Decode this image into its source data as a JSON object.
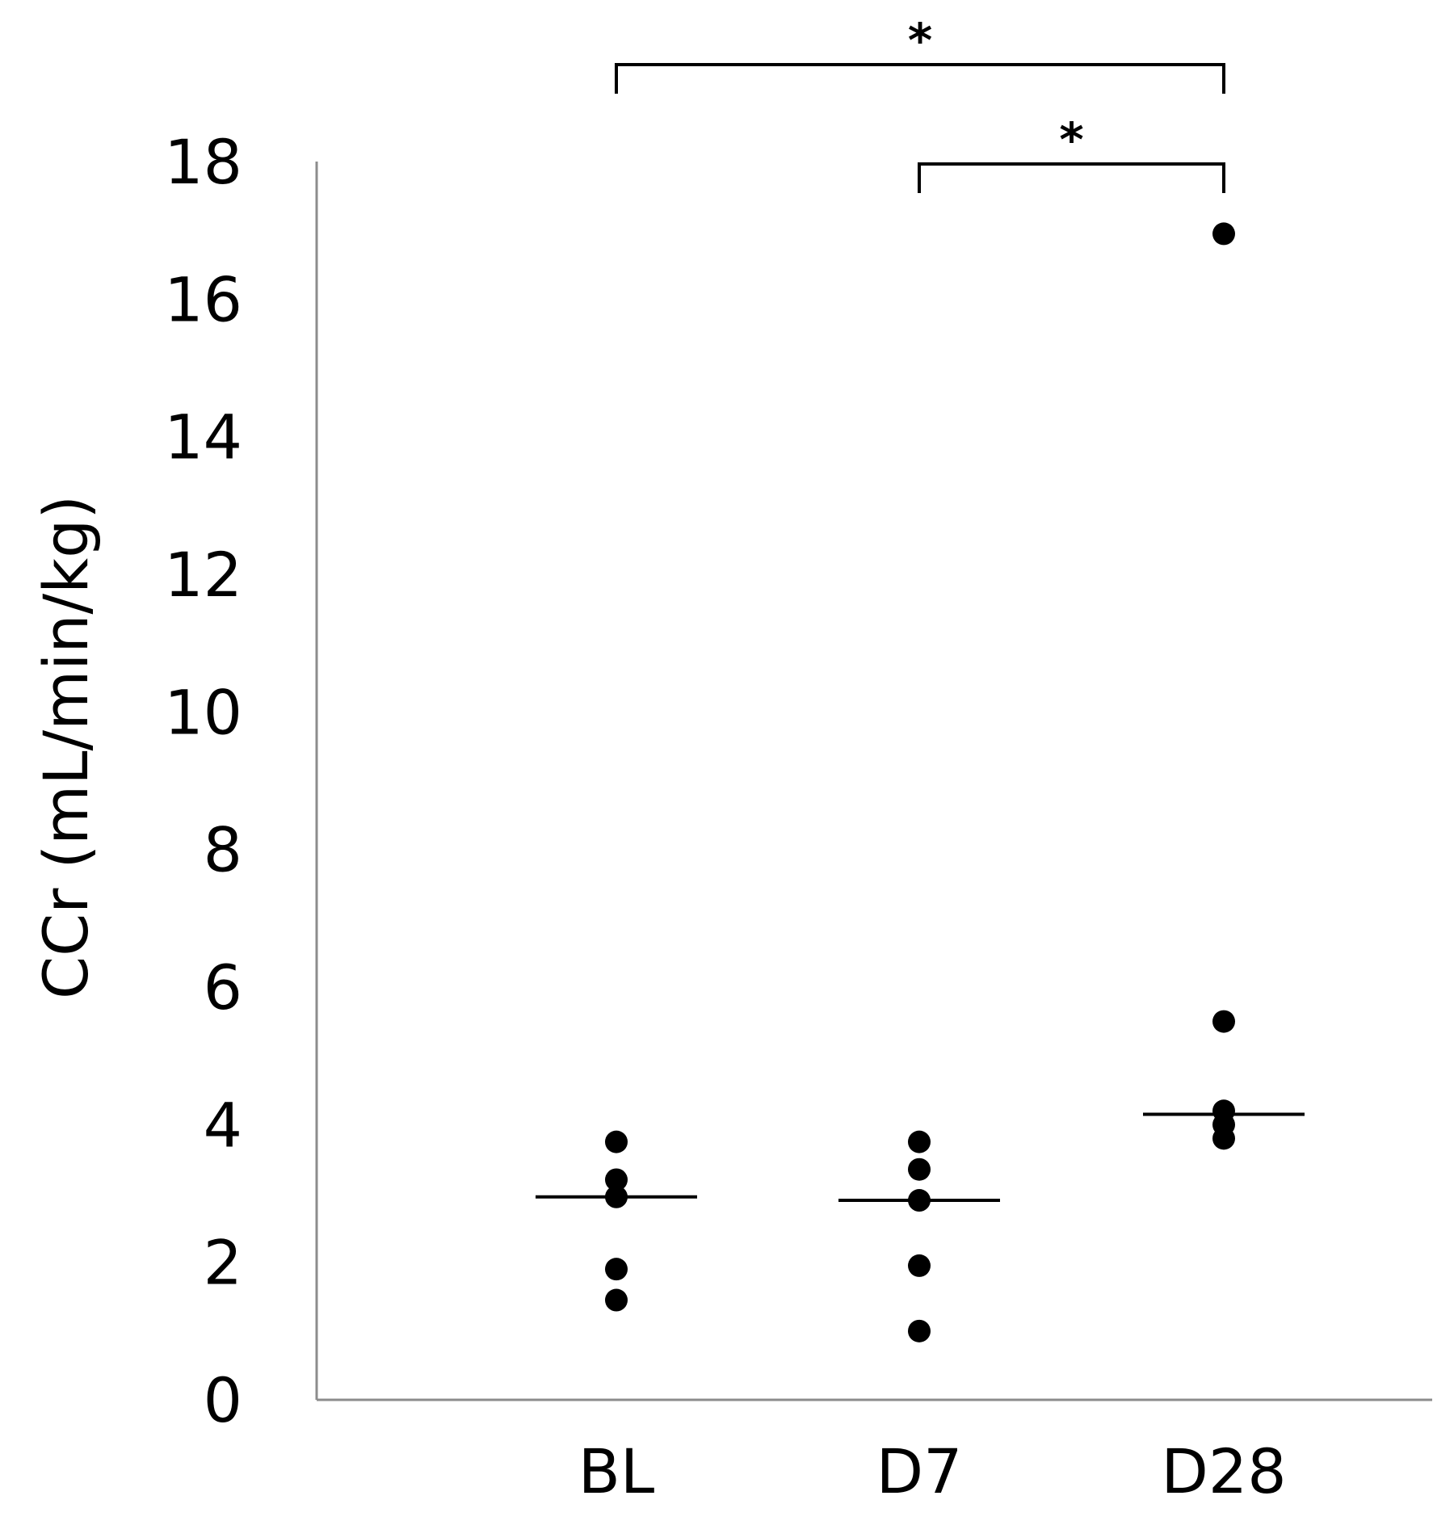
{
  "chart_data": {
    "type": "scatter",
    "subtype": "dot-plot-with-median",
    "title": "",
    "xlabel": "",
    "ylabel": "CCr (mL/min/kg)",
    "categories": [
      "BL",
      "D7",
      "D28"
    ],
    "ylim": [
      0,
      18
    ],
    "yticks": [
      0,
      2,
      4,
      6,
      8,
      10,
      12,
      14,
      16,
      18
    ],
    "ytick_labels": [
      "0",
      "2",
      "4",
      "6",
      "8",
      "10",
      "12",
      "14",
      "16",
      "18"
    ],
    "grid": false,
    "legend": "none",
    "points": [
      [
        3.75,
        3.2,
        2.95,
        1.9,
        1.45
      ],
      [
        3.75,
        3.35,
        2.9,
        1.95,
        1.0
      ],
      [
        16.95,
        5.5,
        4.2,
        4.0,
        3.8
      ]
    ],
    "medians": [
      2.95,
      2.9,
      4.15
    ],
    "significance": [
      {
        "from": "BL",
        "to": "D28",
        "label": "*"
      },
      {
        "from": "D7",
        "to": "D28",
        "label": "*"
      }
    ],
    "colors": {
      "points": "#000000",
      "median": "#000000",
      "axis": "#8c8c8c",
      "brackets": "#000000"
    }
  }
}
